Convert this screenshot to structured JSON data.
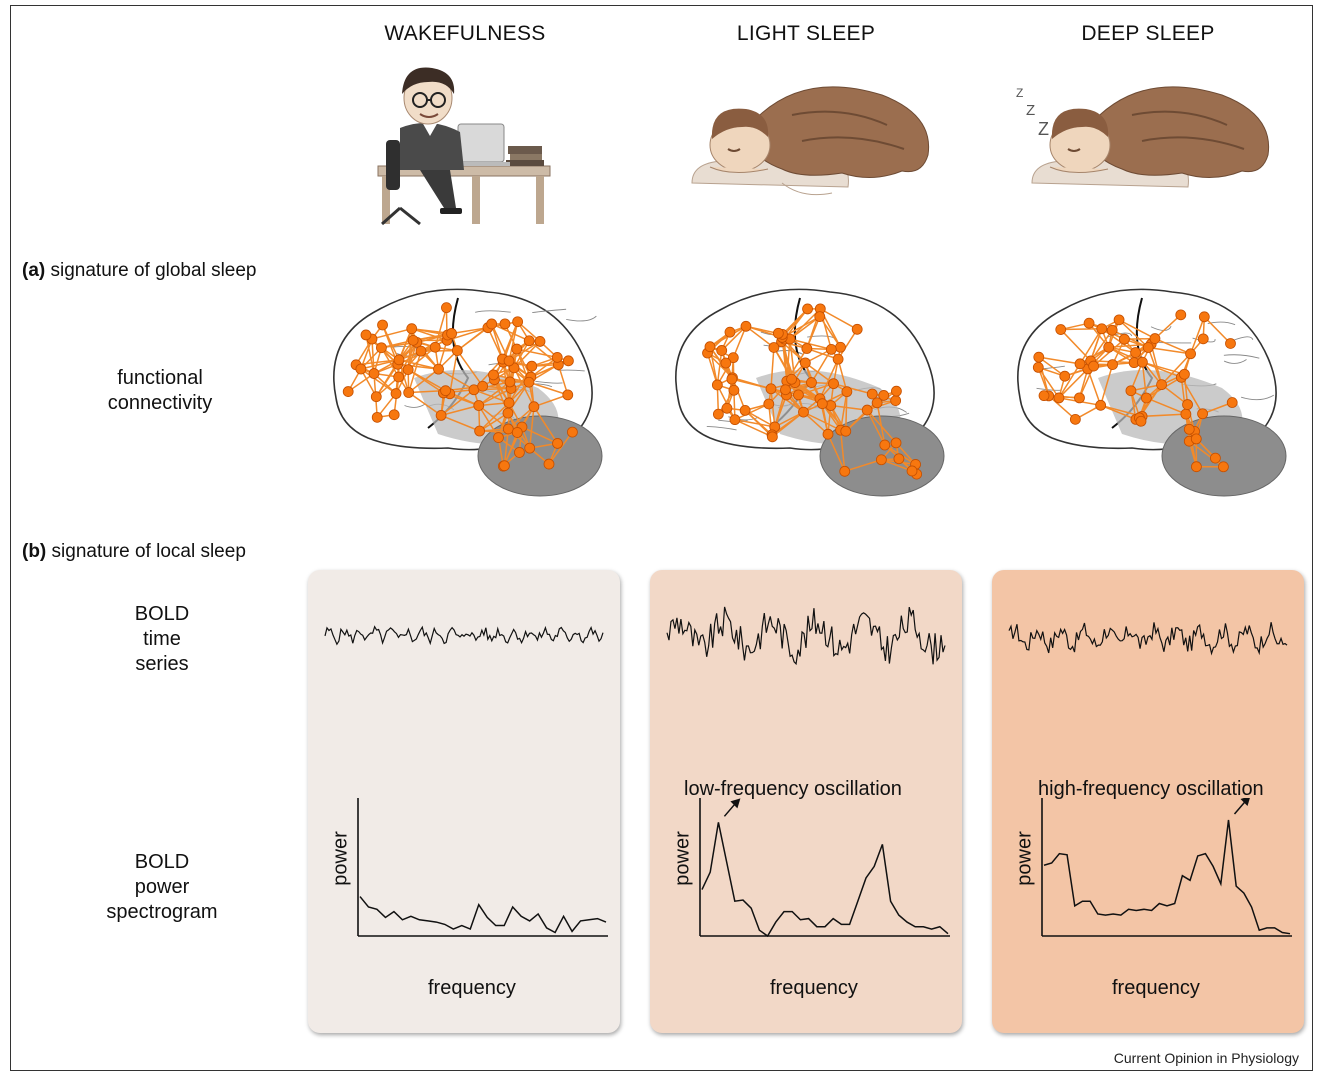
{
  "states": [
    "WAKEFULNESS",
    "LIGHT SLEEP",
    "DEEP SLEEP"
  ],
  "sections": {
    "a_prefix": "(a)",
    "a_text": " signature of global sleep",
    "b_prefix": "(b)",
    "b_text": " signature of local sleep"
  },
  "row_labels": {
    "connectivity": [
      "functional",
      "connectivity"
    ],
    "timeseries": [
      "BOLD",
      "time",
      "series"
    ],
    "spectrogram": [
      "BOLD",
      "power",
      "spectrogram"
    ]
  },
  "axes": {
    "x": "frequency",
    "y": "power"
  },
  "annotations": {
    "light": "low-frequency oscillation",
    "deep": "high-frequency oscillation"
  },
  "sleep_symbol": "Z",
  "credit": "Current Opinion in Physiology",
  "colors": {
    "panel_wake": "#f1ebe7",
    "panel_light": "#f2d8c7",
    "panel_deep": "#f3c5a6",
    "node": "#f7770f",
    "edge": "#f28a2a",
    "brain_fill": "#ffffff",
    "cerebellum": "#8d8d8d",
    "illustration": "#a0785a"
  },
  "spectra": {
    "wake": [
      0.34,
      0.25,
      0.23,
      0.16,
      0.21,
      0.14,
      0.17,
      0.14,
      0.13,
      0.12,
      0.1,
      0.06,
      0.09,
      0.06,
      0.27,
      0.16,
      0.09,
      0.09,
      0.25,
      0.17,
      0.13,
      0.19,
      0.07,
      0.03,
      0.17,
      0.04,
      0.13,
      0.14,
      0.15,
      0.12
    ],
    "light": [
      0.4,
      0.55,
      0.98,
      0.64,
      0.3,
      0.31,
      0.24,
      0.05,
      0.0,
      0.12,
      0.21,
      0.21,
      0.14,
      0.15,
      0.08,
      0.08,
      0.15,
      0.1,
      0.1,
      0.3,
      0.5,
      0.6,
      0.79,
      0.3,
      0.18,
      0.12,
      0.08,
      0.08,
      0.06,
      0.08,
      0.02
    ],
    "deep": [
      0.61,
      0.63,
      0.71,
      0.7,
      0.26,
      0.3,
      0.3,
      0.19,
      0.18,
      0.19,
      0.18,
      0.23,
      0.22,
      0.23,
      0.22,
      0.28,
      0.26,
      0.28,
      0.52,
      0.48,
      0.69,
      0.71,
      0.6,
      0.45,
      1.0,
      0.43,
      0.37,
      0.25,
      0.05,
      0.07,
      0.07,
      0.03,
      0.02
    ]
  },
  "timeseries_amp": {
    "wake": 0.45,
    "light": 1.0,
    "deep": 0.7
  }
}
